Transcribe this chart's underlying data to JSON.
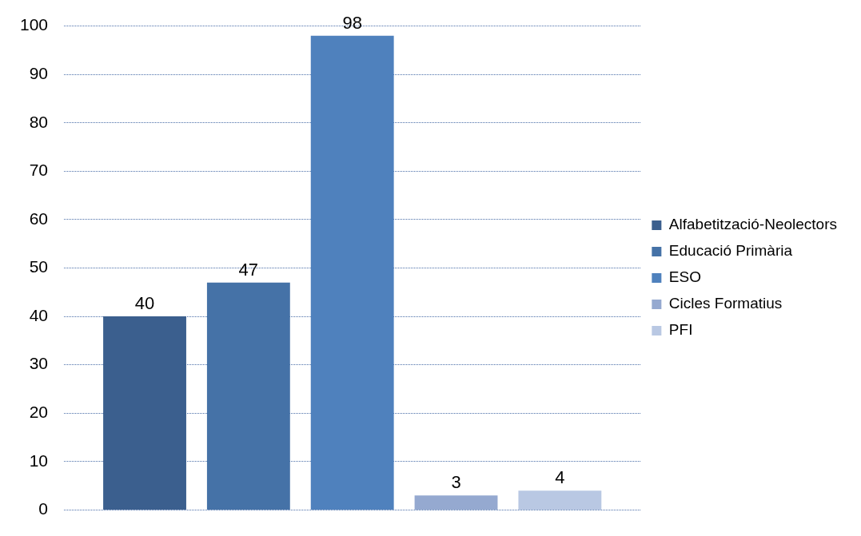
{
  "chart_data": {
    "type": "bar",
    "categories": [
      null
    ],
    "series": [
      {
        "name": "Alfabetització-Neolectors",
        "color": "#3b5f8e",
        "values": [
          40
        ]
      },
      {
        "name": "Educació Primària",
        "color": "#4572a7",
        "values": [
          47
        ]
      },
      {
        "name": "ESO",
        "color": "#4f81bd",
        "values": [
          98
        ]
      },
      {
        "name": "Cicles Formatius",
        "color": "#95a9d0",
        "values": [
          3
        ]
      },
      {
        "name": "PFI",
        "color": "#b9c8e3",
        "values": [
          4
        ]
      }
    ],
    "ylim": [
      0,
      100
    ],
    "yticks": [
      0,
      10,
      20,
      30,
      40,
      50,
      60,
      70,
      80,
      90,
      100
    ],
    "grid": "y",
    "legend": "right",
    "data_labels": true,
    "tick_labels": "y"
  }
}
